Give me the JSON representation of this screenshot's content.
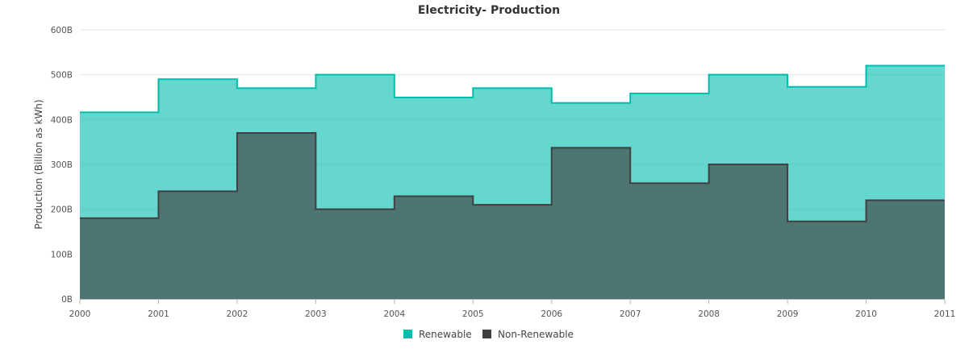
{
  "chart_data": {
    "type": "area",
    "title": "Electricity- Production",
    "xlabel": "",
    "ylabel": "Production (Billion as kWh)",
    "x": [
      "2000",
      "2001",
      "2002",
      "2003",
      "2004",
      "2005",
      "2006",
      "2007",
      "2008",
      "2009",
      "2010",
      "2011"
    ],
    "ylim": [
      0,
      600
    ],
    "yticks": [
      0,
      100,
      200,
      300,
      400,
      500,
      600
    ],
    "ytick_labels": [
      "0B",
      "100B",
      "200B",
      "300B",
      "400B",
      "500B",
      "600B"
    ],
    "grid": true,
    "legend_position": "bottom",
    "series": [
      {
        "name": "Renewable",
        "color": "#00bdae",
        "values": [
          416,
          490,
          470,
          500,
          449,
          470,
          437,
          458,
          500,
          473,
          520,
          520
        ]
      },
      {
        "name": "Non-Renewable",
        "color": "#404041",
        "values": [
          180,
          240,
          370,
          200,
          229,
          210,
          337,
          258,
          300,
          173,
          220,
          220
        ]
      }
    ]
  }
}
